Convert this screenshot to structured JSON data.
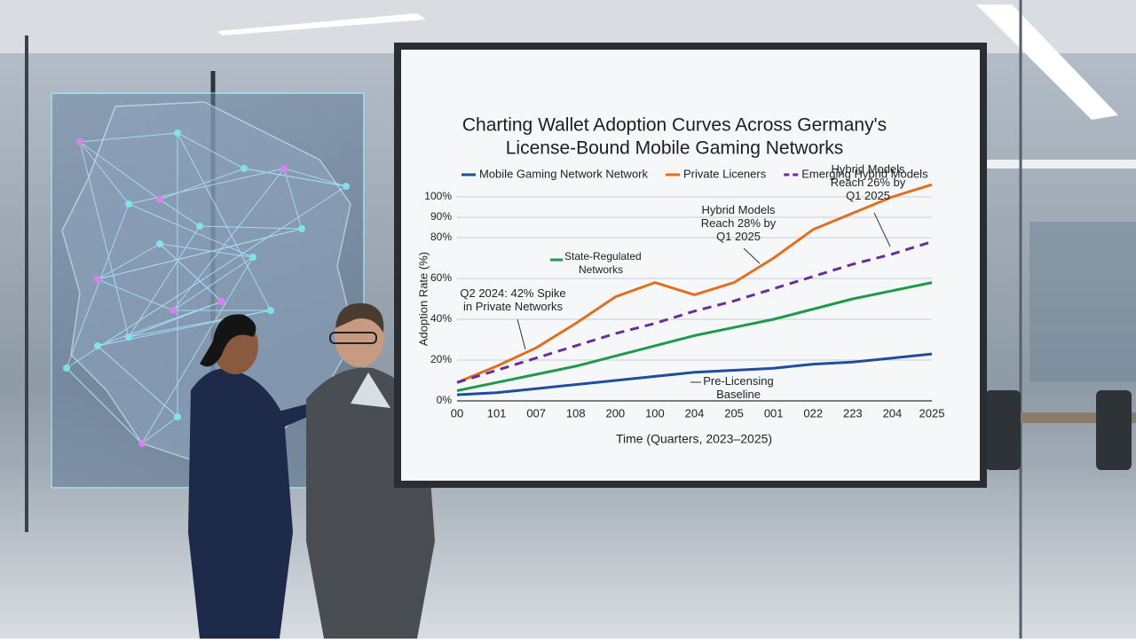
{
  "chart_data": {
    "type": "line",
    "title": [
      "Charting Wallet Adoption Curves Across Germany's",
      "License-Bound Mobile Gaming Networks"
    ],
    "x_label": "Time (Quarters, 2023–2025)",
    "y_label": "Adoption Rate (%)",
    "categories": [
      "00",
      "101",
      "007",
      "108",
      "200",
      "100",
      "204",
      "205",
      "001",
      "022",
      "223",
      "204",
      "2025"
    ],
    "ylim": [
      0,
      110
    ],
    "yticks": [
      {
        "value": 0,
        "label": "0%"
      },
      {
        "value": 20,
        "label": "20%"
      },
      {
        "value": 40,
        "label": "40%"
      },
      {
        "value": 60,
        "label": "60%"
      },
      {
        "value": 80,
        "label": "80%"
      },
      {
        "value": 90,
        "label": "90%"
      },
      {
        "value": 100,
        "label": "100%"
      }
    ],
    "grid": true,
    "series": [
      {
        "name": "Mobile Gaming Network Network",
        "color": "#1f4e9c",
        "dashed": false,
        "legend": true,
        "values": [
          3,
          4,
          6,
          8,
          10,
          12,
          14,
          15,
          16,
          18,
          19,
          21,
          23
        ]
      },
      {
        "name": "Private Liceners",
        "color": "#e07020",
        "dashed": false,
        "legend": true,
        "values": [
          9,
          17,
          26,
          38,
          51,
          58,
          52,
          58,
          70,
          84,
          92,
          100,
          106
        ]
      },
      {
        "name": "Emerging Hybrid Models",
        "color": "#6b2d9a",
        "dashed": true,
        "legend": true,
        "values": [
          9,
          15,
          21,
          27,
          33,
          38,
          44,
          49,
          55,
          61,
          67,
          72,
          78
        ]
      },
      {
        "name": "State-Regulated Networks",
        "color": "#1e9a4a",
        "dashed": false,
        "legend": false,
        "values": [
          5,
          9,
          13,
          17,
          22,
          27,
          32,
          36,
          40,
          45,
          50,
          54,
          58
        ]
      }
    ],
    "annotations": [
      {
        "lines": [
          "Hybrid Models",
          "Reach 26% by",
          "Q1 2025"
        ]
      },
      {
        "lines": [
          "Hybrid Models",
          "Reach 28% by",
          "Q1 2025"
        ]
      },
      {
        "lines": [
          "Q2 2024: 42% Spike",
          "in Private Networks"
        ]
      },
      {
        "lines": [
          "Pre-Licensing",
          "Baseline"
        ]
      }
    ]
  }
}
